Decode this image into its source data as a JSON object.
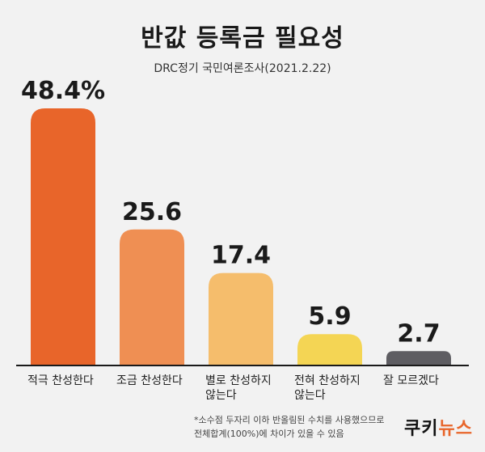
{
  "title": "반값 등록금 필요성",
  "subtitle": "DRC정기 국민여론조사(2021.2.22)",
  "chart_data": {
    "type": "bar",
    "title": "반값 등록금 필요성",
    "subtitle": "DRC정기 국민여론조사(2021.2.22)",
    "categories": [
      [
        "적극 찬성한다"
      ],
      [
        "조금 찬성한다"
      ],
      [
        "별로 찬성하지",
        "않는다"
      ],
      [
        "전혀 찬성하지",
        "않는다"
      ],
      [
        "잘 모르겠다"
      ]
    ],
    "values": [
      48.4,
      25.6,
      17.4,
      5.9,
      2.7
    ],
    "value_labels": [
      "48.4%",
      "25.6",
      "17.4",
      "5.9",
      "2.7"
    ],
    "colors": [
      "#e8652a",
      "#ef8f53",
      "#f5bd6c",
      "#f4d554",
      "#5e5d62"
    ],
    "ylim": [
      0,
      50
    ],
    "grid": false
  },
  "footnote": [
    "*소수점 두자리 이하 반올림된 수치를 사용했으므로",
    "전체합계(100%)에 차이가 있을 수 있음"
  ],
  "brand": {
    "part1": "쿠키",
    "part2": "뉴스"
  }
}
